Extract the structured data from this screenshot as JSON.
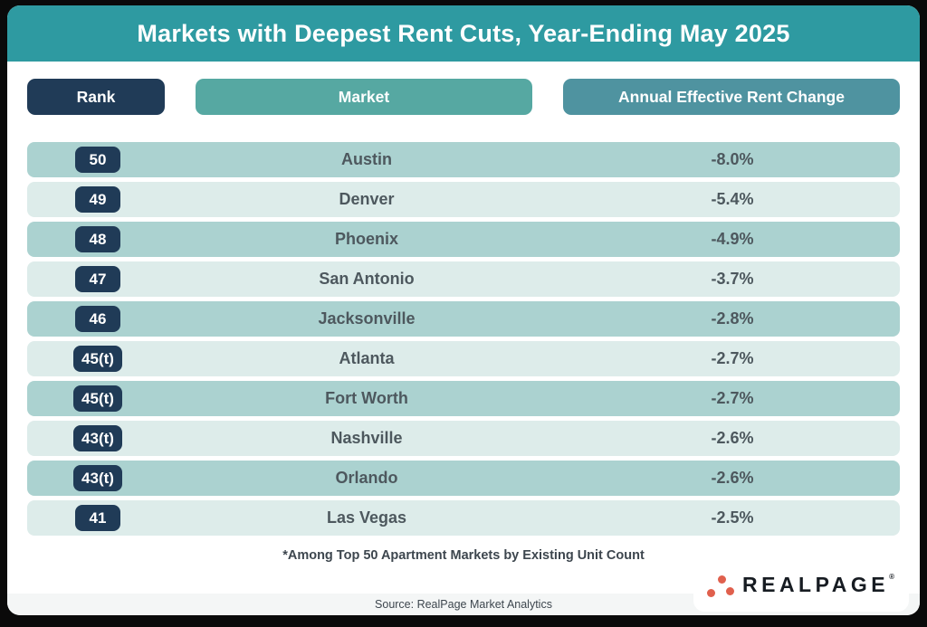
{
  "title": "Markets with Deepest Rent Cuts, Year-Ending May 2025",
  "columns": {
    "rank_label": "Rank",
    "market_label": "Market",
    "change_label": "Annual Effective Rent Change"
  },
  "rows": [
    {
      "rank": "50",
      "market": "Austin",
      "change": "-8.0%"
    },
    {
      "rank": "49",
      "market": "Denver",
      "change": "-5.4%"
    },
    {
      "rank": "48",
      "market": "Phoenix",
      "change": "-4.9%"
    },
    {
      "rank": "47",
      "market": "San Antonio",
      "change": "-3.7%"
    },
    {
      "rank": "46",
      "market": "Jacksonville",
      "change": "-2.8%"
    },
    {
      "rank": "45(t)",
      "market": "Atlanta",
      "change": "-2.7%"
    },
    {
      "rank": "45(t)",
      "market": "Fort Worth",
      "change": "-2.7%"
    },
    {
      "rank": "43(t)",
      "market": "Nashville",
      "change": "-2.6%"
    },
    {
      "rank": "43(t)",
      "market": "Orlando",
      "change": "-2.6%"
    },
    {
      "rank": "41",
      "market": "Las Vegas",
      "change": "-2.5%"
    }
  ],
  "footnote": "*Among Top 50 Apartment Markets by Existing Unit Count",
  "source": "Source: RealPage Market Analytics",
  "logo": {
    "text": "REALPAGE",
    "registered": "®"
  },
  "colors": {
    "title_bar": "#2e9aa1",
    "rank_header": "#203b57",
    "market_header": "#56a8a2",
    "change_header": "#4f93a0",
    "row_dark": "#abd2d0",
    "row_light": "#ddecea",
    "rank_badge": "#203b57",
    "row_text": "#4d585e",
    "logo_dot": "#e0604d"
  },
  "chart_data": {
    "type": "table",
    "title": "Markets with Deepest Rent Cuts, Year-Ending May 2025",
    "columns": [
      "Rank",
      "Market",
      "Annual Effective Rent Change"
    ],
    "rows": [
      [
        "50",
        "Austin",
        "-8.0%"
      ],
      [
        "49",
        "Denver",
        "-5.4%"
      ],
      [
        "48",
        "Phoenix",
        "-4.9%"
      ],
      [
        "47",
        "San Antonio",
        "-3.7%"
      ],
      [
        "46",
        "Jacksonville",
        "-2.8%"
      ],
      [
        "45(t)",
        "Atlanta",
        "-2.7%"
      ],
      [
        "45(t)",
        "Fort Worth",
        "-2.7%"
      ],
      [
        "43(t)",
        "Nashville",
        "-2.6%"
      ],
      [
        "43(t)",
        "Orlando",
        "-2.6%"
      ],
      [
        "41",
        "Las Vegas",
        "-2.5%"
      ]
    ],
    "values_numeric_pct": [
      -8.0,
      -5.4,
      -4.9,
      -3.7,
      -2.8,
      -2.7,
      -2.7,
      -2.6,
      -2.6,
      -2.5
    ],
    "footnote": "*Among Top 50 Apartment Markets by Existing Unit Count",
    "source": "Source: RealPage Market Analytics"
  }
}
